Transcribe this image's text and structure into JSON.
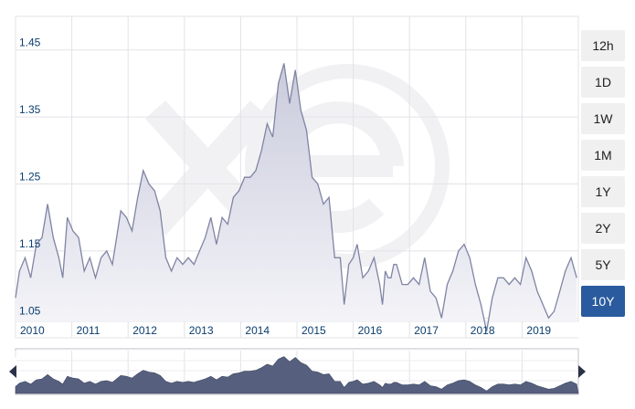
{
  "range_buttons": [
    {
      "label": "12h",
      "active": false
    },
    {
      "label": "1D",
      "active": false
    },
    {
      "label": "1W",
      "active": false
    },
    {
      "label": "1M",
      "active": false
    },
    {
      "label": "1Y",
      "active": false
    },
    {
      "label": "2Y",
      "active": false
    },
    {
      "label": "5Y",
      "active": false
    },
    {
      "label": "10Y",
      "active": true
    }
  ],
  "watermark_logo": "xe",
  "colors": {
    "line": "#7f84a3",
    "area_top": "#c9cbdc",
    "area_bottom": "#f5f5f9",
    "navigator_fill": "#56607e",
    "active_button": "#2a5b9e",
    "label_text": "#0a3d6e"
  },
  "chart_data": {
    "type": "area",
    "title": "",
    "xlabel": "",
    "ylabel": "",
    "x_ticks": [
      "2010",
      "2011",
      "2012",
      "2013",
      "2014",
      "2015",
      "2016",
      "2017",
      "2018",
      "2019"
    ],
    "y_ticks": [
      "1.05",
      "1.15",
      "1.25",
      "1.35",
      "1.45"
    ],
    "xlim": [
      2009.58,
      2019.58
    ],
    "ylim": [
      1.045,
      1.5
    ],
    "grid": true,
    "legend": "none",
    "series": [
      {
        "x": [
          2009.58,
          2009.65,
          2009.75,
          2009.85,
          2009.95,
          2010.05,
          2010.15,
          2010.25,
          2010.35,
          2010.42,
          2010.5,
          2010.6,
          2010.7,
          2010.8,
          2010.9,
          2011.0,
          2011.1,
          2011.2,
          2011.3,
          2011.45,
          2011.55,
          2011.65,
          2011.75,
          2011.85,
          2011.95,
          2012.05,
          2012.15,
          2012.25,
          2012.35,
          2012.45,
          2012.55,
          2012.65,
          2012.75,
          2012.85,
          2012.95,
          2013.05,
          2013.15,
          2013.25,
          2013.35,
          2013.45,
          2013.55,
          2013.65,
          2013.75,
          2013.85,
          2013.95,
          2014.05,
          2014.15,
          2014.25,
          2014.35,
          2014.45,
          2014.55,
          2014.65,
          2014.75,
          2014.85,
          2014.95,
          2015.05,
          2015.15,
          2015.25,
          2015.35,
          2015.42,
          2015.5,
          2015.58,
          2015.65,
          2015.75,
          2015.85,
          2015.95,
          2016.05,
          2016.1,
          2016.15,
          2016.2,
          2016.25,
          2016.3,
          2016.35,
          2016.45,
          2016.55,
          2016.65,
          2016.75,
          2016.85,
          2016.95,
          2017.05,
          2017.15,
          2017.25,
          2017.35,
          2017.45,
          2017.55,
          2017.65,
          2017.75,
          2017.85,
          2017.95,
          2018.05,
          2018.15,
          2018.25,
          2018.35,
          2018.45,
          2018.55,
          2018.65,
          2018.75,
          2018.85,
          2018.95,
          2019.05,
          2019.15,
          2019.25,
          2019.35,
          2019.45,
          2019.55
        ],
        "y": [
          1.08,
          1.12,
          1.14,
          1.11,
          1.16,
          1.17,
          1.22,
          1.17,
          1.14,
          1.11,
          1.2,
          1.18,
          1.17,
          1.12,
          1.14,
          1.11,
          1.14,
          1.15,
          1.13,
          1.21,
          1.2,
          1.18,
          1.23,
          1.27,
          1.25,
          1.24,
          1.21,
          1.14,
          1.12,
          1.14,
          1.13,
          1.14,
          1.13,
          1.15,
          1.17,
          1.2,
          1.16,
          1.2,
          1.19,
          1.23,
          1.24,
          1.26,
          1.26,
          1.27,
          1.3,
          1.34,
          1.32,
          1.4,
          1.43,
          1.37,
          1.42,
          1.36,
          1.33,
          1.26,
          1.25,
          1.22,
          1.23,
          1.14,
          1.14,
          1.07,
          1.13,
          1.14,
          1.16,
          1.11,
          1.12,
          1.14,
          1.1,
          1.07,
          1.12,
          1.11,
          1.11,
          1.13,
          1.13,
          1.1,
          1.1,
          1.11,
          1.1,
          1.14,
          1.09,
          1.08,
          1.05,
          1.1,
          1.12,
          1.15,
          1.16,
          1.14,
          1.1,
          1.07,
          1.03,
          1.08,
          1.11,
          1.11,
          1.1,
          1.11,
          1.1,
          1.14,
          1.12,
          1.09,
          1.07,
          1.05,
          1.06,
          1.09,
          1.12,
          1.14,
          1.11
        ]
      }
    ]
  }
}
